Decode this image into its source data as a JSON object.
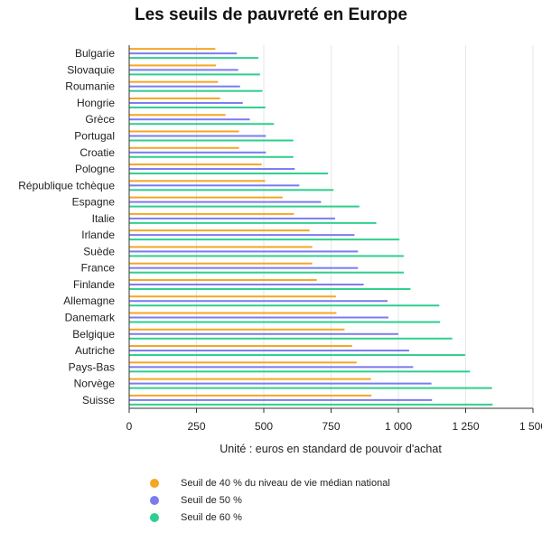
{
  "chart_data": {
    "type": "bar",
    "orientation": "horizontal",
    "title": "Les seuils de pauvreté en Europe",
    "xlabel": "Unité : euros en standard de pouvoir d'achat",
    "ylabel": "",
    "xlim": [
      0,
      1500
    ],
    "x_ticks": [
      0,
      250,
      500,
      750,
      1000,
      1250,
      1500
    ],
    "x_tick_labels": [
      "0",
      "250",
      "500",
      "750",
      "1 000",
      "1 250",
      "1 500"
    ],
    "grid": true,
    "legend_position": "bottom-left",
    "categories": [
      "Bulgarie",
      "Slovaquie",
      "Roumanie",
      "Hongrie",
      "Grèce",
      "Portugal",
      "Croatie",
      "Pologne",
      "République tchèque",
      "Espagne",
      "Italie",
      "Irlande",
      "Suède",
      "France",
      "Finlande",
      "Allemagne",
      "Danemark",
      "Belgique",
      "Autriche",
      "Pays-Bas",
      "Norvège",
      "Suisse"
    ],
    "series": [
      {
        "name": "Seuil de 40 % du niveau de vie médian national",
        "color": "#f5a623",
        "values": [
          320,
          322,
          330,
          338,
          358,
          408,
          408,
          492,
          505,
          570,
          612,
          670,
          680,
          680,
          697,
          768,
          770,
          800,
          828,
          845,
          898,
          900
        ]
      },
      {
        "name": "Seuil de 50 %",
        "color": "#7b7bf0",
        "values": [
          400,
          405,
          412,
          422,
          448,
          508,
          508,
          615,
          632,
          713,
          765,
          837,
          850,
          850,
          871,
          960,
          963,
          1000,
          1040,
          1055,
          1123,
          1125
        ]
      },
      {
        "name": "Seuil de 60 %",
        "color": "#2ecf8e",
        "values": [
          480,
          486,
          495,
          506,
          538,
          610,
          610,
          738,
          759,
          855,
          918,
          1004,
          1020,
          1020,
          1045,
          1152,
          1155,
          1200,
          1248,
          1266,
          1348,
          1350
        ]
      }
    ]
  }
}
